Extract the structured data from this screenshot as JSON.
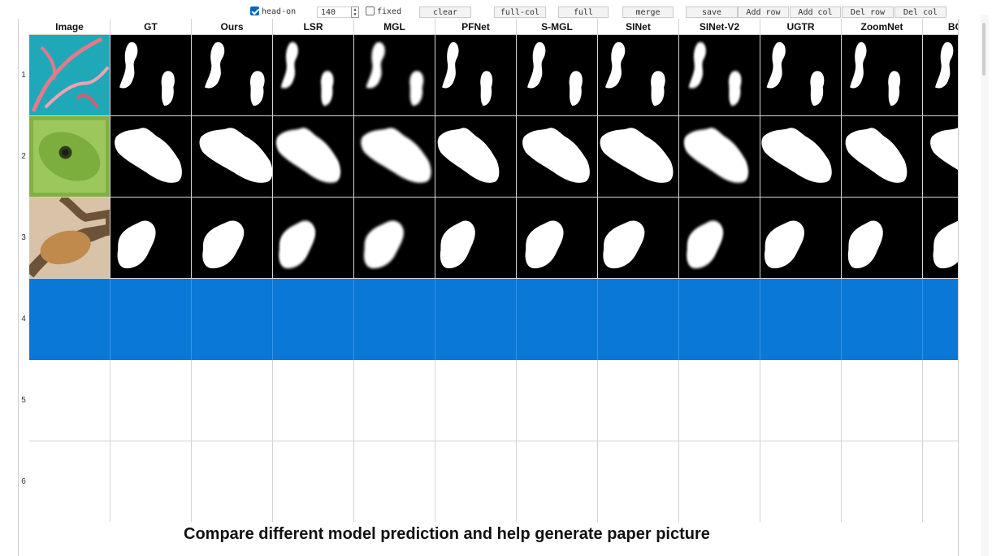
{
  "toolbar": {
    "head_on_label": "head-on",
    "head_on_checked": true,
    "size_value": "140",
    "fixed_label": "fixed",
    "fixed_checked": false,
    "buttons": [
      {
        "name": "clear-button",
        "label": "clear"
      },
      {
        "name": "full-col-button",
        "label": "full-col"
      },
      {
        "name": "full-button",
        "label": "full"
      },
      {
        "name": "merge-button",
        "label": "merge"
      },
      {
        "name": "save-button",
        "label": "save"
      },
      {
        "name": "add-row-button",
        "label": "Add row"
      },
      {
        "name": "add-col-button",
        "label": "Add col"
      },
      {
        "name": "del-row-button",
        "label": "Del row"
      },
      {
        "name": "del-col-button",
        "label": "Del col"
      }
    ]
  },
  "grid": {
    "columns": [
      "Image",
      "GT",
      "Ours",
      "LSR",
      "MGL",
      "PFNet",
      "S-MGL",
      "SINet",
      "SINet-V2",
      "UGTR",
      "ZoomNet",
      "BGNet"
    ],
    "rows": [
      "1",
      "2",
      "3",
      "4",
      "5",
      "6"
    ],
    "selected_row": 4,
    "filled_rows": 3
  },
  "caption": "Compare different model prediction and help generate paper picture",
  "colors": {
    "selection": "#0a78d7",
    "mask_bg": "#000000",
    "mask_fg": "#ffffff",
    "gridline": "#d4d4d4"
  }
}
